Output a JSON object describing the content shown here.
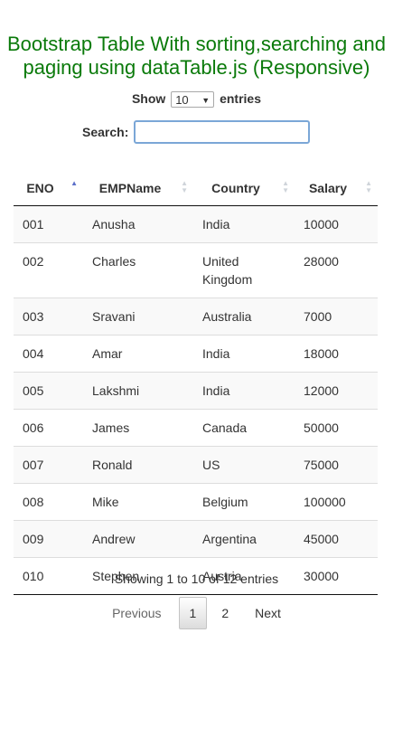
{
  "title": "Bootstrap Table With sorting,searching and paging using dataTable.js (Responsive)",
  "length": {
    "show_label": "Show",
    "selected": "10",
    "entries_label": "entries"
  },
  "search": {
    "label": "Search:",
    "value": "",
    "placeholder": ""
  },
  "table": {
    "columns": [
      {
        "label": "ENO",
        "sort": "asc"
      },
      {
        "label": "EMPName",
        "sort": "none"
      },
      {
        "label": "Country",
        "sort": "none"
      },
      {
        "label": "Salary",
        "sort": "none"
      }
    ],
    "rows": [
      {
        "eno": "001",
        "name": "Anusha",
        "country": "India",
        "salary": "10000"
      },
      {
        "eno": "002",
        "name": "Charles",
        "country": "United Kingdom",
        "salary": "28000"
      },
      {
        "eno": "003",
        "name": "Sravani",
        "country": "Australia",
        "salary": "7000"
      },
      {
        "eno": "004",
        "name": "Amar",
        "country": "India",
        "salary": "18000"
      },
      {
        "eno": "005",
        "name": "Lakshmi",
        "country": "India",
        "salary": "12000"
      },
      {
        "eno": "006",
        "name": "James",
        "country": "Canada",
        "salary": "50000"
      },
      {
        "eno": "007",
        "name": "Ronald",
        "country": "US",
        "salary": "75000"
      },
      {
        "eno": "008",
        "name": "Mike",
        "country": "Belgium",
        "salary": "100000"
      },
      {
        "eno": "009",
        "name": "Andrew",
        "country": "Argentina",
        "salary": "45000"
      },
      {
        "eno": "010",
        "name": "Stephen",
        "country": "Austria",
        "salary": "30000"
      }
    ]
  },
  "info": "Showing 1 to 10 of 12 entries",
  "pagination": {
    "previous": "Previous",
    "pages": [
      "1",
      "2"
    ],
    "current": "1",
    "next": "Next"
  }
}
